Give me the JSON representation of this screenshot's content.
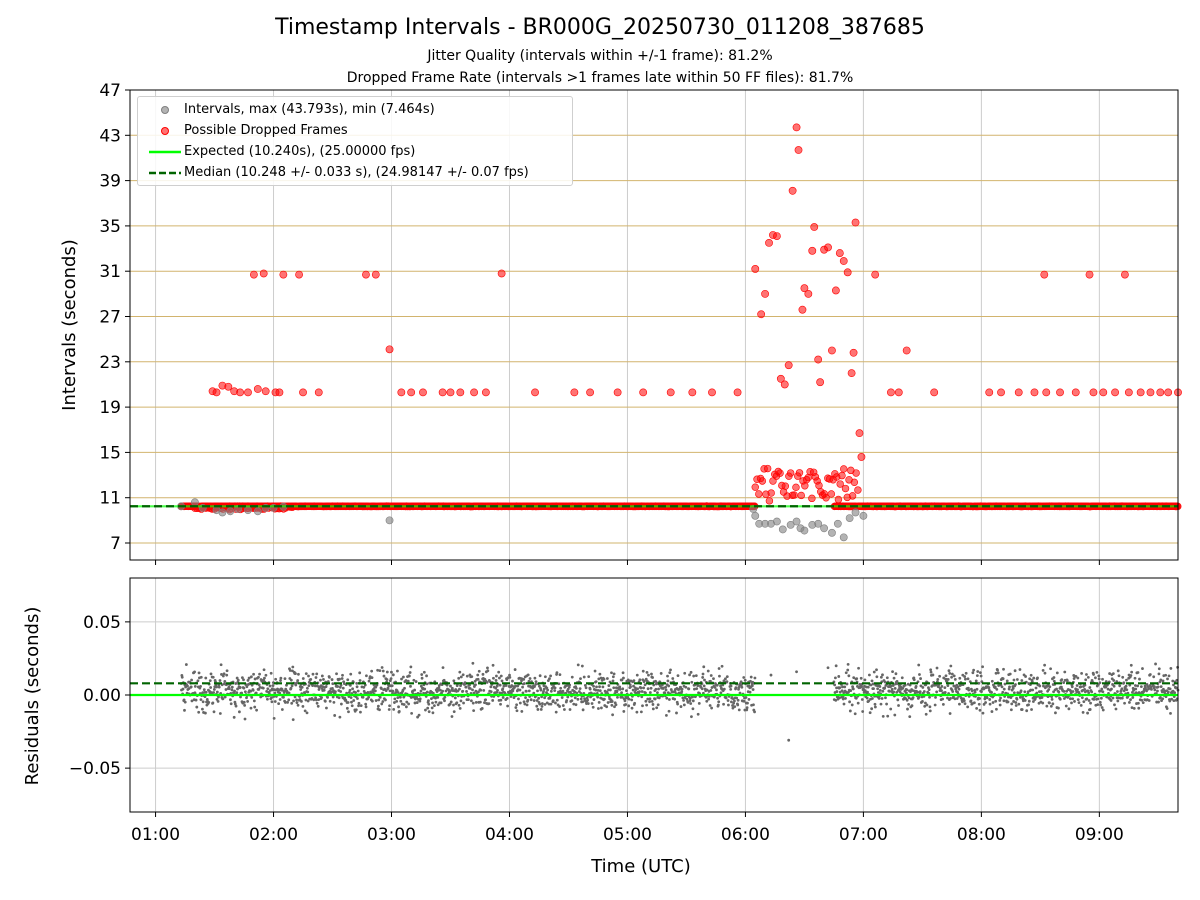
{
  "header": {
    "title": "Timestamp Intervals - BR000G_20250730_011208_387685",
    "subtitle1": "Jitter Quality (intervals within +/-1 frame): 81.2%",
    "subtitle2": "Dropped Frame Rate (intervals >1 frames late within 50 FF files): 81.7%"
  },
  "legend": {
    "intervals": "Intervals, max (43.793s), min (7.464s)",
    "dropped": "Possible Dropped Frames",
    "expected": "Expected (10.240s), (25.00000 fps)",
    "median": "Median (10.248 +/- 0.033 s), (24.98147 +/- 0.07 fps)"
  },
  "colors": {
    "intervals": "#808080",
    "dropped": "#ff0000",
    "expected": "#00ff00",
    "median": "#006400",
    "hgrid": "#d2b46e",
    "vgrid": "#cccccc",
    "residual_points": "#666666"
  },
  "chart_data": [
    {
      "type": "scatter",
      "title": "Timestamp Intervals - BR000G_20250730_011208_387685",
      "xlabel": "",
      "ylabel": "Intervals (seconds)",
      "xlim": [
        "00:47",
        "09:40"
      ],
      "ylim": [
        5.5,
        47
      ],
      "yticks": [
        7,
        11,
        15,
        19,
        23,
        27,
        31,
        35,
        39,
        43,
        47
      ],
      "expected_line": 10.24,
      "median_line": 10.248,
      "grid": true,
      "legend_position": "upper-left",
      "series": [
        {
          "name": "Intervals, max (43.793s), min (7.464s)",
          "points": [
            [
              "01:13",
              10.24
            ],
            [
              "01:20",
              10.6
            ],
            [
              "01:24",
              10.1
            ],
            [
              "01:31",
              9.9
            ],
            [
              "01:34",
              9.7
            ],
            [
              "01:38",
              9.8
            ],
            [
              "01:42",
              10.0
            ],
            [
              "01:47",
              9.9
            ],
            [
              "01:52",
              9.8
            ],
            [
              "01:56",
              10.1
            ],
            [
              "02:00",
              10.1
            ],
            [
              "02:05",
              10.2
            ],
            [
              "02:59",
              9.0
            ],
            [
              "06:04",
              10.0
            ],
            [
              "06:05",
              9.4
            ],
            [
              "06:07",
              8.7
            ],
            [
              "06:10",
              8.7
            ],
            [
              "06:13",
              8.7
            ],
            [
              "06:16",
              8.9
            ],
            [
              "06:19",
              8.2
            ],
            [
              "06:23",
              8.6
            ],
            [
              "06:26",
              8.9
            ],
            [
              "06:28",
              8.3
            ],
            [
              "06:30",
              8.1
            ],
            [
              "06:34",
              8.6
            ],
            [
              "06:37",
              8.7
            ],
            [
              "06:40",
              8.3
            ],
            [
              "06:44",
              7.9
            ],
            [
              "06:47",
              8.7
            ],
            [
              "06:50",
              7.5
            ],
            [
              "06:53",
              9.2
            ],
            [
              "06:56",
              9.7
            ],
            [
              "07:00",
              9.4
            ]
          ]
        },
        {
          "name": "Possible Dropped Frames",
          "points": [
            [
              "01:29",
              20.4
            ],
            [
              "01:31",
              20.3
            ],
            [
              "01:34",
              20.9
            ],
            [
              "01:37",
              20.8
            ],
            [
              "01:40",
              20.4
            ],
            [
              "01:43",
              20.3
            ],
            [
              "01:47",
              20.3
            ],
            [
              "01:52",
              20.6
            ],
            [
              "01:56",
              20.4
            ],
            [
              "02:01",
              20.3
            ],
            [
              "02:03",
              20.3
            ],
            [
              "01:50",
              30.7
            ],
            [
              "01:55",
              30.8
            ],
            [
              "02:05",
              30.7
            ],
            [
              "02:13",
              30.7
            ],
            [
              "02:15",
              20.3
            ],
            [
              "02:23",
              20.3
            ],
            [
              "02:47",
              30.7
            ],
            [
              "02:52",
              30.7
            ],
            [
              "02:59",
              24.1
            ],
            [
              "03:05",
              20.3
            ],
            [
              "03:10",
              20.3
            ],
            [
              "03:16",
              20.3
            ],
            [
              "03:26",
              20.3
            ],
            [
              "03:30",
              20.3
            ],
            [
              "03:35",
              20.3
            ],
            [
              "03:42",
              20.3
            ],
            [
              "03:48",
              20.3
            ],
            [
              "03:56",
              30.8
            ],
            [
              "04:13",
              20.3
            ],
            [
              "04:33",
              20.3
            ],
            [
              "04:41",
              20.3
            ],
            [
              "04:55",
              20.3
            ],
            [
              "05:08",
              20.3
            ],
            [
              "05:22",
              20.3
            ],
            [
              "05:33",
              20.3
            ],
            [
              "05:43",
              20.3
            ],
            [
              "05:56",
              20.3
            ],
            [
              "06:05",
              31.2
            ],
            [
              "06:08",
              27.2
            ],
            [
              "06:10",
              29.0
            ],
            [
              "06:12",
              33.5
            ],
            [
              "06:14",
              34.2
            ],
            [
              "06:16",
              34.1
            ],
            [
              "06:18",
              21.5
            ],
            [
              "06:20",
              21.0
            ],
            [
              "06:22",
              22.7
            ],
            [
              "06:24",
              38.1
            ],
            [
              "06:26",
              43.7
            ],
            [
              "06:27",
              41.7
            ],
            [
              "06:29",
              27.6
            ],
            [
              "06:30",
              29.5
            ],
            [
              "06:32",
              29.0
            ],
            [
              "06:34",
              32.8
            ],
            [
              "06:35",
              34.9
            ],
            [
              "06:37",
              23.2
            ],
            [
              "06:38",
              21.2
            ],
            [
              "06:40",
              32.9
            ],
            [
              "06:42",
              33.1
            ],
            [
              "06:44",
              24.0
            ],
            [
              "06:46",
              29.3
            ],
            [
              "06:48",
              32.6
            ],
            [
              "06:50",
              31.9
            ],
            [
              "06:52",
              30.9
            ],
            [
              "06:54",
              22.0
            ],
            [
              "06:55",
              23.8
            ],
            [
              "06:56",
              35.3
            ],
            [
              "06:58",
              16.7
            ],
            [
              "06:59",
              14.6
            ],
            [
              "07:06",
              30.7
            ],
            [
              "07:14",
              20.3
            ],
            [
              "07:18",
              20.3
            ],
            [
              "07:22",
              24.0
            ],
            [
              "07:36",
              20.3
            ],
            [
              "08:04",
              20.3
            ],
            [
              "08:10",
              20.3
            ],
            [
              "08:19",
              20.3
            ],
            [
              "08:27",
              20.3
            ],
            [
              "08:33",
              20.3
            ],
            [
              "08:40",
              20.3
            ],
            [
              "08:48",
              20.3
            ],
            [
              "08:57",
              20.3
            ],
            [
              "09:02",
              20.3
            ],
            [
              "09:08",
              20.3
            ],
            [
              "09:15",
              20.3
            ],
            [
              "09:21",
              20.3
            ],
            [
              "09:26",
              20.3
            ],
            [
              "09:31",
              20.3
            ],
            [
              "09:35",
              20.3
            ],
            [
              "09:40",
              20.3
            ],
            [
              "08:32",
              30.7
            ],
            [
              "08:55",
              30.7
            ],
            [
              "09:13",
              30.7
            ]
          ]
        },
        {
          "name": "Expected (10.240s), (25.00000 fps)",
          "y": 10.24
        },
        {
          "name": "Median (10.248 +/- 0.033 s), (24.98147 +/- 0.07 fps)",
          "y": 10.248
        }
      ]
    },
    {
      "type": "scatter",
      "xlabel": "Time (UTC)",
      "ylabel": "Residuals (seconds)",
      "xlim": [
        "00:47",
        "09:40"
      ],
      "ylim": [
        -0.08,
        0.08
      ],
      "yticks": [
        "−0.05",
        "0.00",
        "0.05"
      ],
      "xticks": [
        "01:00",
        "02:00",
        "03:00",
        "04:00",
        "05:00",
        "06:00",
        "07:00",
        "08:00",
        "09:00"
      ],
      "expected_line": 0.0,
      "median_line": 0.008,
      "residual_spread": 0.033,
      "residual_ranges": [
        [
          "01:13",
          "06:05"
        ],
        [
          "06:45",
          "09:40"
        ]
      ],
      "grid": true
    }
  ]
}
